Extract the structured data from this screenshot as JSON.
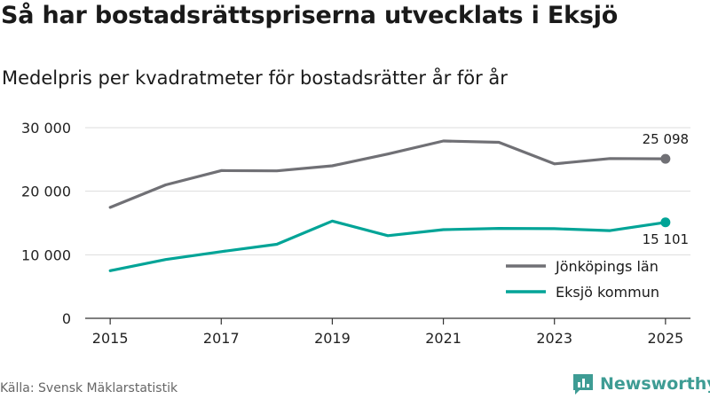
{
  "header": {
    "title": "Så har bostadsrättspriserna utvecklats i Eksjö",
    "subtitle": "Medelpris per kvadratmeter för bostadsrätter år för år"
  },
  "footer": {
    "source": "Källa: Svensk Mäklarstatistik",
    "brand": "Newsworthy"
  },
  "colors": {
    "jonkoping": "#707075",
    "eksjo": "#00a497",
    "grid": "#dddddd",
    "axis": "#333333",
    "brand": "#3e9c94"
  },
  "icons": {
    "brand_logo": "newsworthy-logo-icon"
  },
  "chart_data": {
    "type": "line",
    "title": "Så har bostadsrättspriserna utvecklats i Eksjö",
    "subtitle": "Medelpris per kvadratmeter för bostadsrätter år för år",
    "x": [
      2015,
      2016,
      2017,
      2018,
      2019,
      2020,
      2021,
      2022,
      2023,
      2024,
      2025
    ],
    "x_ticks": [
      2015,
      2017,
      2019,
      2021,
      2023,
      2025
    ],
    "x_tick_labels": [
      "2015",
      "2017",
      "2019",
      "2021",
      "2023",
      "2025"
    ],
    "y_ticks": [
      0,
      10000,
      20000,
      30000
    ],
    "y_tick_labels": [
      "0",
      "10 000",
      "20 000",
      "30 000"
    ],
    "ylim": [
      0,
      30000
    ],
    "xlim": [
      2015,
      2025
    ],
    "grid": true,
    "legend_position": "bottom-right",
    "series": [
      {
        "name": "Jönköpings län",
        "color": "#707075",
        "values": [
          17450,
          21000,
          23250,
          23200,
          24000,
          25850,
          27900,
          27700,
          24300,
          25150,
          25098
        ],
        "end_label": "25 098"
      },
      {
        "name": "Eksjö kommun",
        "color": "#00a497",
        "values": [
          7500,
          9250,
          10500,
          11650,
          15300,
          13000,
          13950,
          14150,
          14100,
          13800,
          15101
        ],
        "end_label": "15 101"
      }
    ]
  }
}
